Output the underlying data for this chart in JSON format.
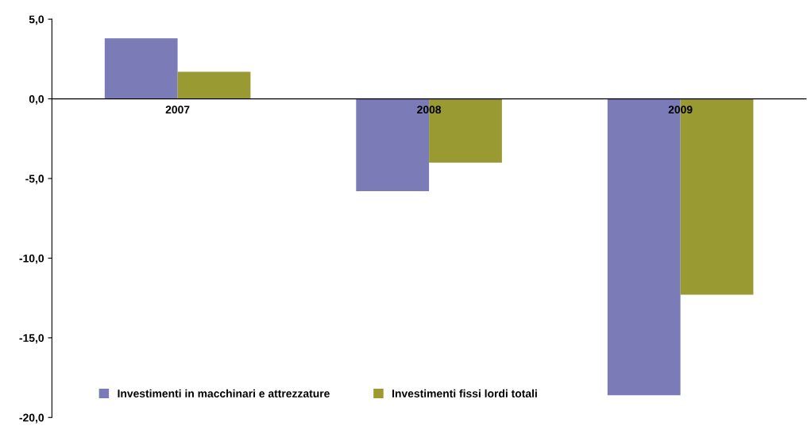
{
  "chart_data": {
    "type": "bar",
    "categories": [
      "2007",
      "2008",
      "2009"
    ],
    "series": [
      {
        "name": "Investimenti in macchinari e attrezzature",
        "color": "#7b7bb8",
        "values": [
          3.8,
          -5.8,
          -18.6
        ]
      },
      {
        "name": "Investimenti fissi lordi totali",
        "color": "#9a9a32",
        "values": [
          1.7,
          -4.0,
          -12.3
        ]
      }
    ],
    "ylim": [
      -20,
      5
    ],
    "yticks": [
      {
        "value": 5,
        "label": "5,0"
      },
      {
        "value": 0,
        "label": "0,0"
      },
      {
        "value": -5,
        "label": "-5,0"
      },
      {
        "value": -10,
        "label": "-10,0"
      },
      {
        "value": -15,
        "label": "-15,0"
      },
      {
        "value": -20,
        "label": "-20,0"
      }
    ],
    "grid": false,
    "legend": "bottom left"
  }
}
